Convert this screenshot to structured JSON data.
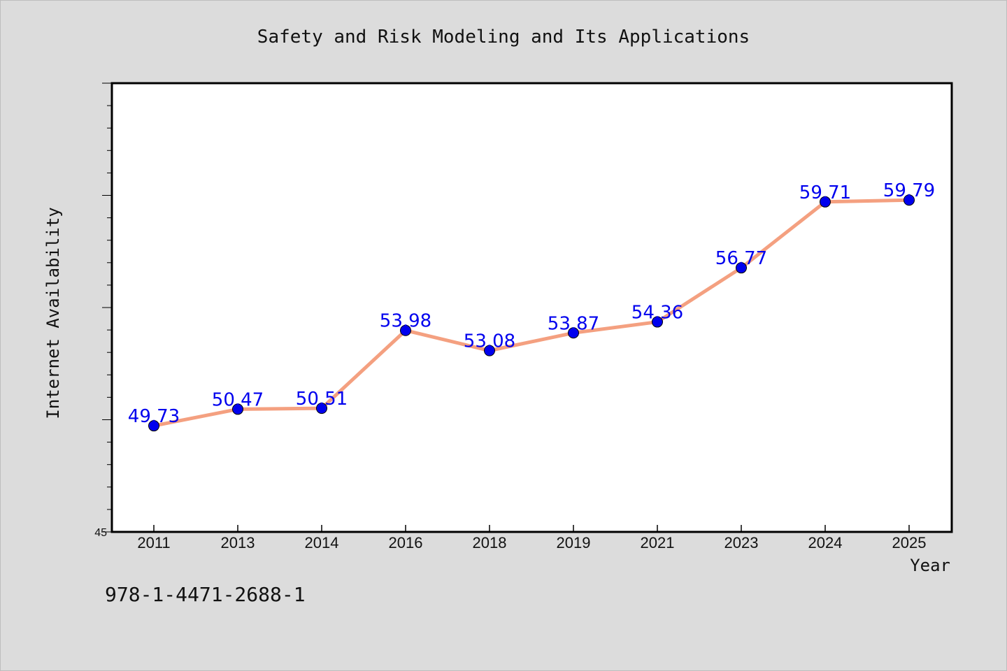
{
  "chart_data": {
    "type": "line",
    "title": "Safety and Risk Modeling and Its Applications",
    "xlabel": "Year",
    "ylabel": "Internet Availability",
    "categories": [
      "2011",
      "2013",
      "2014",
      "2016",
      "2018",
      "2019",
      "2021",
      "2023",
      "2024",
      "2025"
    ],
    "values": [
      49.73,
      50.47,
      50.51,
      53.98,
      53.08,
      53.87,
      54.36,
      56.77,
      59.71,
      59.79
    ],
    "data_labels": [
      "49.73",
      "50.47",
      "50.51",
      "53.98",
      "53.08",
      "53.87",
      "54.36",
      "56.77",
      "59.71",
      "59.79"
    ],
    "ylim": [
      45,
      65
    ],
    "y_tick_labels": [
      "45"
    ],
    "y_ticks_minor_step": 1,
    "y_ticks_major_step": 5,
    "grid": false,
    "legend": "none",
    "colors": {
      "line": "#f4a080",
      "marker": "#0000ee",
      "data_label": "#0000ee",
      "background": "#dcdcdc",
      "plot_background": "#ffffff"
    }
  },
  "footer": {
    "isbn": "978-1-4471-2688-1"
  }
}
